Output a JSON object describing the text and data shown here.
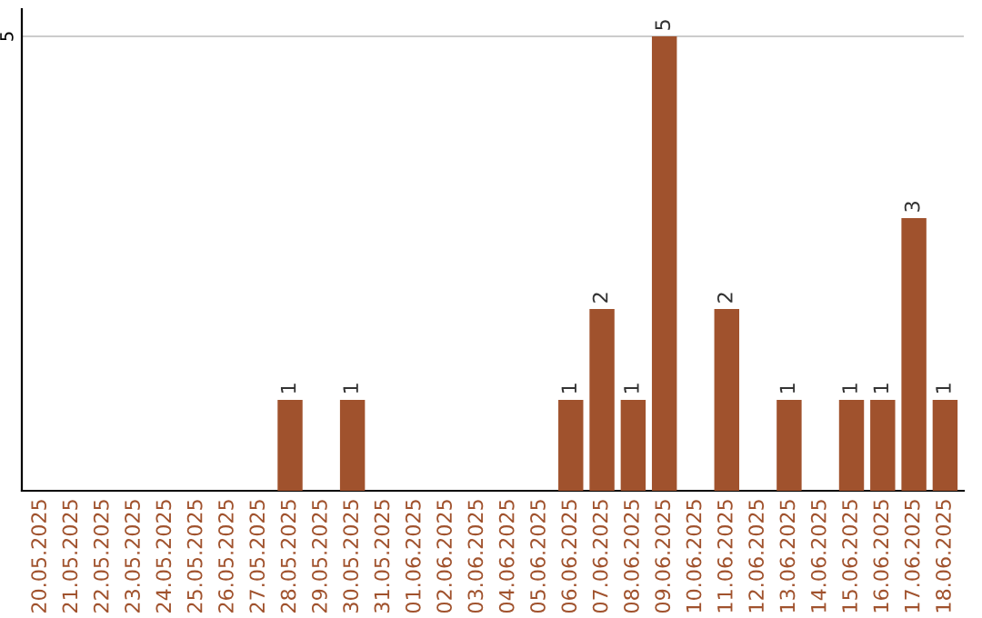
{
  "chart_data": {
    "type": "bar",
    "categories": [
      "20.05.2025",
      "21.05.2025",
      "22.05.2025",
      "23.05.2025",
      "24.05.2025",
      "25.05.2025",
      "26.05.2025",
      "27.05.2025",
      "28.05.2025",
      "29.05.2025",
      "30.05.2025",
      "31.05.2025",
      "01.06.2025",
      "02.06.2025",
      "03.06.2025",
      "04.06.2025",
      "05.06.2025",
      "06.06.2025",
      "07.06.2025",
      "08.06.2025",
      "09.06.2025",
      "10.06.2025",
      "11.06.2025",
      "12.06.2025",
      "13.06.2025",
      "14.06.2025",
      "15.06.2025",
      "16.06.2025",
      "17.06.2025",
      "18.06.2025"
    ],
    "values": [
      0,
      0,
      0,
      0,
      0,
      0,
      0,
      0,
      1,
      0,
      1,
      0,
      0,
      0,
      0,
      0,
      0,
      1,
      2,
      1,
      5,
      0,
      2,
      0,
      1,
      0,
      1,
      1,
      3,
      1
    ],
    "value_labels": [
      null,
      null,
      null,
      null,
      null,
      null,
      null,
      null,
      "1",
      null,
      "1",
      null,
      null,
      null,
      null,
      null,
      null,
      "1",
      "2",
      "1",
      "5",
      null,
      "2",
      null,
      "1",
      null,
      "1",
      "1",
      "3",
      "1"
    ],
    "color": "#a0522d",
    "ylim": [
      0,
      5.3
    ],
    "yticks": [
      5
    ],
    "grid": "y",
    "legend": false
  }
}
